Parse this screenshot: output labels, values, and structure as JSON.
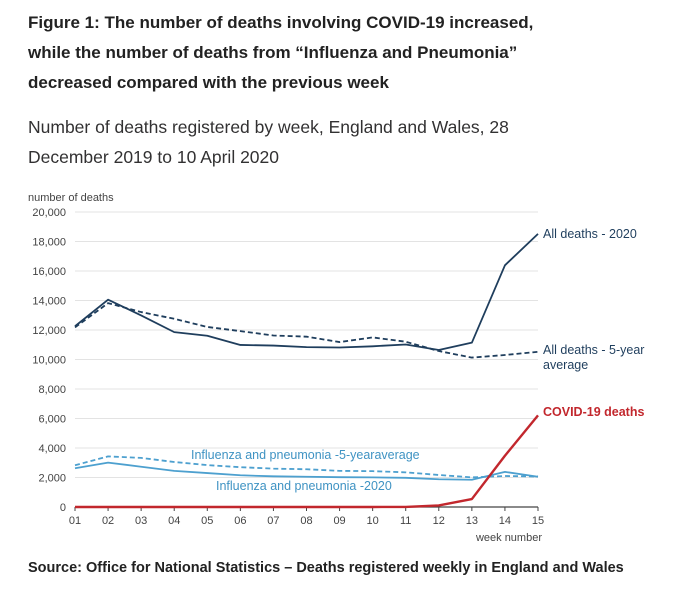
{
  "title_lines": [
    "Figure 1: The number of deaths involving COVID-19 increased,",
    "while the number of deaths from “Influenza and Pneumonia”",
    "decreased compared with the previous week"
  ],
  "subtitle_lines": [
    "Number of deaths registered by week, England and Wales, 28",
    "December 2019 to 10 April 2020"
  ],
  "source": "Source: Office for National Statistics – Deaths registered weekly in England and Wales",
  "chart_data": {
    "type": "line",
    "ylabel": "number of deaths",
    "xlabel": "week number",
    "ylim": [
      0,
      20000
    ],
    "yticks": [
      "0",
      "2,000",
      "4,000",
      "6,000",
      "8,000",
      "10,000",
      "12,000",
      "14,000",
      "16,000",
      "18,000",
      "20,000"
    ],
    "categories": [
      "01",
      "02",
      "03",
      "04",
      "05",
      "06",
      "07",
      "08",
      "09",
      "10",
      "11",
      "12",
      "13",
      "14",
      "15"
    ],
    "grid": true,
    "series": [
      {
        "name": "All deaths - 2020",
        "label_lines": [
          "All deaths - 2020"
        ],
        "color": "#1f3e5d",
        "dash": false,
        "bold": false,
        "values": [
          12254,
          14058,
          12990,
          11856,
          11612,
          10986,
          10944,
          10841,
          10816,
          10895,
          11019,
          10645,
          11141,
          16387,
          18516
        ]
      },
      {
        "name": "All deaths - 5-year average",
        "label_lines": [
          "All deaths - 5-year",
          "average"
        ],
        "color": "#1f3e5d",
        "dash": true,
        "bold": false,
        "values": [
          12175,
          13822,
          13216,
          12760,
          12206,
          11925,
          11627,
          11548,
          11183,
          11498,
          11205,
          10573,
          10130,
          10305,
          10520
        ]
      },
      {
        "name": "COVID-19 deaths",
        "label_lines": [
          "COVID-19 deaths"
        ],
        "color": "#c2272d",
        "dash": false,
        "bold": true,
        "values": [
          0,
          0,
          0,
          0,
          0,
          0,
          0,
          0,
          0,
          0,
          5,
          103,
          539,
          3475,
          6213
        ]
      },
      {
        "name": "Influenza and pneumonia -5-yearaverage",
        "label_lines": [
          "Influenza and pneumonia -5-yearaverage"
        ],
        "color": "#4da0cf",
        "dash": true,
        "bold": false,
        "values": [
          2830,
          3430,
          3330,
          3050,
          2840,
          2700,
          2600,
          2560,
          2450,
          2430,
          2350,
          2170,
          2010,
          2100,
          2070
        ]
      },
      {
        "name": "Influenza and pneumonia -2020",
        "label_lines": [
          "Influenza and pneumonia -2020"
        ],
        "color": "#4da0cf",
        "dash": false,
        "bold": false,
        "values": [
          2630,
          3010,
          2730,
          2450,
          2300,
          2150,
          2080,
          2050,
          2020,
          2010,
          1980,
          1880,
          1850,
          2380,
          2050
        ]
      }
    ]
  }
}
